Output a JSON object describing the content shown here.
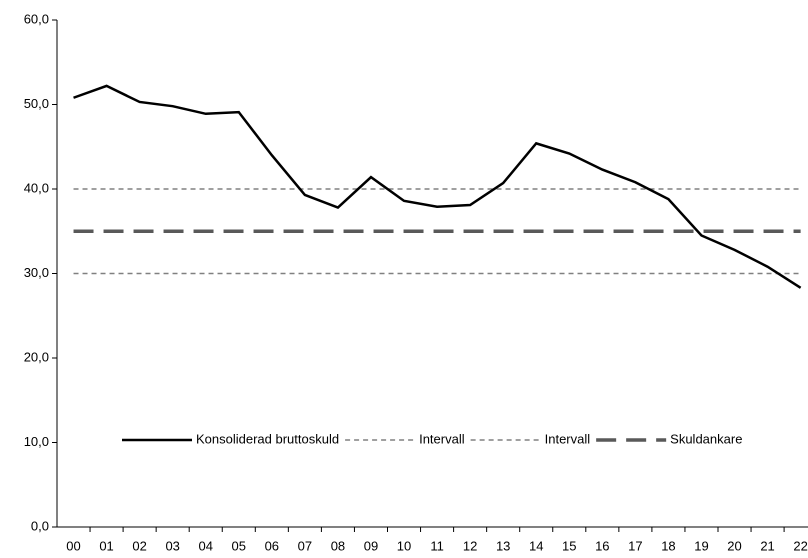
{
  "chart_data": {
    "type": "line",
    "categories": [
      "00",
      "01",
      "02",
      "03",
      "04",
      "05",
      "06",
      "07",
      "08",
      "09",
      "10",
      "11",
      "12",
      "13",
      "14",
      "15",
      "16",
      "17",
      "18",
      "19",
      "20",
      "21",
      "22"
    ],
    "series": [
      {
        "name": "Konsoliderad bruttoskuld",
        "color": "#000000",
        "style": "solid",
        "values": [
          50.8,
          52.2,
          50.3,
          49.8,
          48.9,
          49.1,
          44.0,
          39.3,
          37.8,
          41.4,
          38.6,
          37.9,
          38.1,
          40.7,
          45.4,
          44.2,
          42.3,
          40.8,
          38.8,
          34.5,
          32.8,
          30.8,
          28.3
        ]
      },
      {
        "name": "Intervall",
        "color": "#808080",
        "style": "dashed",
        "values": [
          40,
          40,
          40,
          40,
          40,
          40,
          40,
          40,
          40,
          40,
          40,
          40,
          40,
          40,
          40,
          40,
          40,
          40,
          40,
          40,
          40,
          40,
          40
        ]
      },
      {
        "name": "Intervall",
        "color": "#808080",
        "style": "dashed",
        "values": [
          30,
          30,
          30,
          30,
          30,
          30,
          30,
          30,
          30,
          30,
          30,
          30,
          30,
          30,
          30,
          30,
          30,
          30,
          30,
          30,
          30,
          30,
          30
        ]
      },
      {
        "name": "Skuldankare",
        "color": "#595959",
        "style": "longdash",
        "values": [
          35,
          35,
          35,
          35,
          35,
          35,
          35,
          35,
          35,
          35,
          35,
          35,
          35,
          35,
          35,
          35,
          35,
          35,
          35,
          35,
          35,
          35,
          35
        ]
      }
    ],
    "ylim": [
      0,
      60
    ],
    "yticks": [
      {
        "value": 0,
        "label": "0,0"
      },
      {
        "value": 10,
        "label": "10,0"
      },
      {
        "value": 20,
        "label": "20,0"
      },
      {
        "value": 30,
        "label": "30,0"
      },
      {
        "value": 40,
        "label": "40,0"
      },
      {
        "value": 50,
        "label": "50,0"
      },
      {
        "value": 60,
        "label": "60,0"
      }
    ],
    "grid": false,
    "legend": "bottom"
  }
}
